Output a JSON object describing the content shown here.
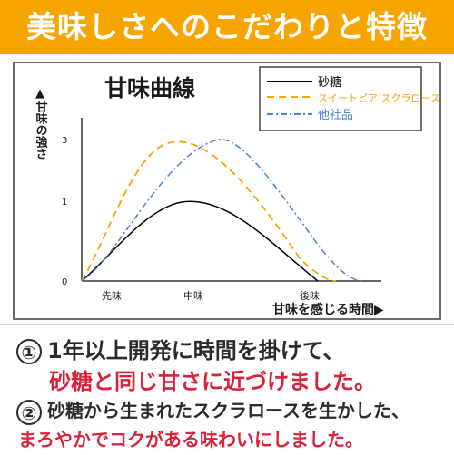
{
  "banner": {
    "title": "美味しさへのこだわりと特徴",
    "color": "#f5a400"
  },
  "chart_data": {
    "type": "line",
    "title": "甘味曲線",
    "ylabel": "▲甘味の強さ",
    "xlabel": "甘味を感じる時間▶",
    "yticks": [
      "0",
      "1",
      "3"
    ],
    "xticks": [
      "先味",
      "中味",
      "後味"
    ],
    "series": [
      {
        "name": "砂糖",
        "color": "#000000",
        "dash": "solid",
        "points": [
          [
            0,
            0
          ],
          [
            0.5,
            0.5
          ],
          [
            1,
            0.9
          ],
          [
            2,
            0.95
          ],
          [
            2.5,
            0.3
          ],
          [
            3,
            0
          ]
        ]
      },
      {
        "name": "スイートピア スクラロース",
        "color": "#f5a400",
        "dash": "dashed",
        "points": [
          [
            0,
            0
          ],
          [
            0.5,
            1.8
          ],
          [
            1,
            2.9
          ],
          [
            2,
            2.0
          ],
          [
            2.5,
            0.8
          ],
          [
            3,
            0
          ]
        ]
      },
      {
        "name": "他社品",
        "color": "#4a84c9",
        "dash": "dashdot",
        "points": [
          [
            0,
            0
          ],
          [
            0.5,
            1.2
          ],
          [
            1,
            2.6
          ],
          [
            2,
            2.6
          ],
          [
            2.5,
            1.2
          ],
          [
            3,
            0
          ]
        ]
      }
    ]
  },
  "notes": {
    "n1_mark": "①",
    "n1_line1": "1年以上開発に時間を掛けて、",
    "n1_line2": "砂糖と同じ甘さに近づけました。",
    "n2_mark": "②",
    "n2_line1": "砂糖から生まれたスクラロースを生かした、",
    "n2_line2": "まろやかでコクがある味わいにしました。"
  }
}
